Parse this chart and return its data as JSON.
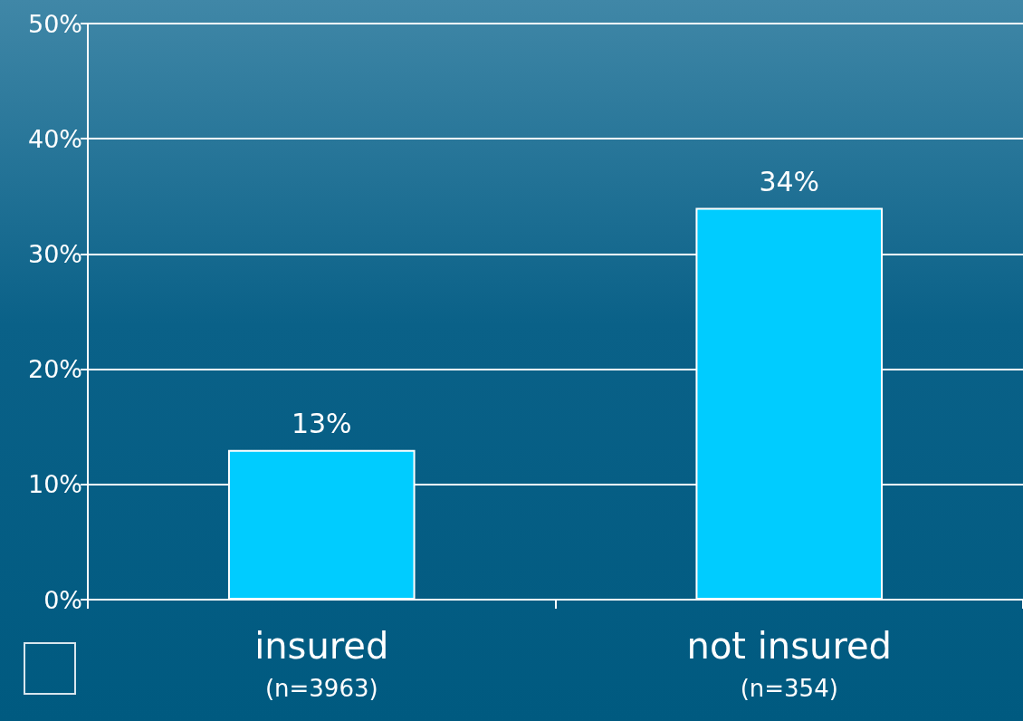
{
  "chart_data": {
    "type": "bar",
    "categories": [
      "insured\n(n=3963)",
      "not insured\n(n=354)"
    ],
    "values": [
      13,
      34
    ],
    "value_labels": [
      "13%",
      "34%"
    ],
    "color": "#00ccff",
    "ylim": [
      0,
      50
    ],
    "yticks": [
      {
        "value": 0,
        "label": "0%"
      },
      {
        "value": 10,
        "label": "10%"
      },
      {
        "value": 20,
        "label": "20%"
      },
      {
        "value": 30,
        "label": "30%"
      },
      {
        "value": 40,
        "label": "40%"
      },
      {
        "value": 50,
        "label": "50%"
      }
    ],
    "grid": "y"
  }
}
